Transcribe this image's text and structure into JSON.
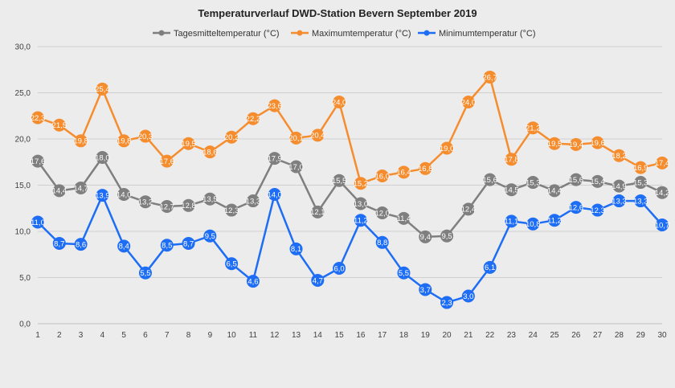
{
  "chart_data": {
    "type": "line",
    "title": "Temperaturverlauf DWD-Station Bevern September 2019",
    "xlabel": "",
    "ylabel": "",
    "ylim": [
      0,
      30
    ],
    "yticks": [
      "0,0",
      "5,0",
      "10,0",
      "15,0",
      "20,0",
      "25,0",
      "30,0"
    ],
    "grid": true,
    "legend_position": "top",
    "categories": [
      "1",
      "2",
      "3",
      "4",
      "5",
      "6",
      "7",
      "8",
      "9",
      "10",
      "11",
      "12",
      "13",
      "14",
      "15",
      "16",
      "17",
      "18",
      "19",
      "20",
      "21",
      "22",
      "23",
      "24",
      "25",
      "26",
      "27",
      "28",
      "29",
      "30"
    ],
    "series": [
      {
        "name": "Tagesmitteltemperatur (°C)",
        "color": "#7f7f7f",
        "values": [
          17.6,
          14.4,
          14.7,
          18.0,
          14.0,
          13.2,
          12.7,
          12.8,
          13.5,
          12.3,
          13.3,
          17.9,
          17.0,
          12.1,
          15.5,
          13.0,
          12.0,
          11.4,
          9.4,
          9.5,
          12.4,
          15.6,
          14.5,
          15.3,
          14.4,
          15.6,
          15.4,
          14.9,
          15.3,
          14.2
        ],
        "labels": [
          "17,6",
          "14,4",
          "14,7",
          "18,0",
          "14,0",
          "13,2",
          "12,7",
          "12,8",
          "13,5",
          "12,3",
          "13,3",
          "17,9",
          "17,0",
          "12,1",
          "15,5",
          "13,0",
          "12,0",
          "11,4",
          "9,4",
          "9,5",
          "12,4",
          "15,6",
          "14,5",
          "15,3",
          "14,4",
          "15,6",
          "15,4",
          "14,9",
          "15,3",
          "14,2"
        ]
      },
      {
        "name": "Maximumtemperatur (°C)",
        "color": "#f58d2f",
        "values": [
          22.3,
          21.5,
          19.8,
          25.4,
          19.8,
          20.3,
          17.6,
          19.5,
          18.6,
          20.2,
          22.2,
          23.6,
          20.1,
          20.4,
          24.0,
          15.2,
          16.0,
          16.4,
          16.8,
          19.0,
          24.0,
          26.7,
          17.8,
          21.2,
          19.5,
          19.4,
          19.6,
          18.2,
          16.9,
          17.4
        ],
        "labels": [
          "22,3",
          "21,5",
          "19,8",
          "25,4",
          "19,8",
          "20,3",
          "17,6",
          "19,5",
          "18,6",
          "20,2",
          "22,2",
          "23,6",
          "20,1",
          "20,4",
          "24,0",
          "15,2",
          "16,0",
          "16,4",
          "16,8",
          "19,0",
          "24,0",
          "26,7",
          "17,8",
          "21,2",
          "19,5",
          "19,4",
          "19,6",
          "18,2",
          "16,9",
          "17,4"
        ]
      },
      {
        "name": "Minimumtemperatur (°C)",
        "color": "#1e6df5",
        "values": [
          11.0,
          8.7,
          8.6,
          13.9,
          8.4,
          5.5,
          8.5,
          8.7,
          9.5,
          6.5,
          4.6,
          14.0,
          8.1,
          4.7,
          6.0,
          11.2,
          8.8,
          5.5,
          3.7,
          2.3,
          3.0,
          6.1,
          11.1,
          10.8,
          11.2,
          12.6,
          12.3,
          13.3,
          13.3,
          10.7
        ],
        "labels": [
          "11,0",
          "8,7",
          "8,6",
          "13,9",
          "8,4",
          "5,5",
          "8,5",
          "8,7",
          "9,5",
          "6,5",
          "4,6",
          "14,0",
          "8,1",
          "4,7",
          "6,0",
          "11,2",
          "8,8",
          "5,5",
          "3,7",
          "2,3",
          "3,0",
          "6,1",
          "11,1",
          "10,8",
          "11,2",
          "12,6",
          "12,3",
          "13,3",
          "13,3",
          "10,7"
        ]
      }
    ]
  }
}
